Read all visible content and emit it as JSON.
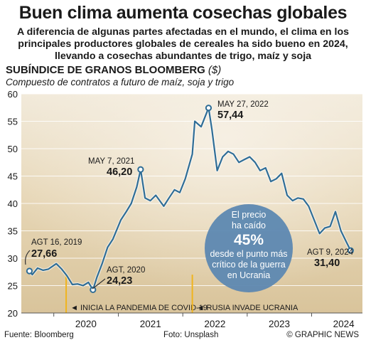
{
  "header": {
    "title": "Buen clima aumenta cosechas globales",
    "subtitle": "A diferencia de algunas partes afectadas en el mundo, el clima en los principales productores globales de cereales  ha sido bueno en 2024, llevando a cosechas abundantes de trigo, maíz y soja"
  },
  "chart_header": {
    "title": "SUBÍNDICE DE GRANOS BLOOMBERG",
    "unit": "($)",
    "subtitle": "Compuesto de contratos a futuro de maíz, soja y trigo"
  },
  "chart_data": {
    "type": "line",
    "title": "SUBÍNDICE DE GRANOS BLOOMBERG",
    "ylim": [
      20,
      60
    ],
    "yticks": [
      20,
      25,
      30,
      35,
      40,
      45,
      50,
      55,
      60
    ],
    "xlim": [
      "2019-07-01",
      "2024-10-15"
    ],
    "xticks": [
      {
        "label": "2020",
        "date": "2020-01-01"
      },
      {
        "label": "2021",
        "date": "2021-01-01"
      },
      {
        "label": "2022",
        "date": "2022-01-01"
      },
      {
        "label": "2023",
        "date": "2023-01-01"
      },
      {
        "label": "2024",
        "date": "2024-01-01"
      }
    ],
    "grid": true,
    "series": [
      {
        "color": "#2f6d96",
        "points": [
          [
            "2019-08-16",
            27.66
          ],
          [
            "2019-09-01",
            27.0
          ],
          [
            "2019-10-01",
            28.2
          ],
          [
            "2019-11-01",
            27.8
          ],
          [
            "2019-12-01",
            28.0
          ],
          [
            "2020-01-15",
            29.0
          ],
          [
            "2020-02-15",
            28.0
          ],
          [
            "2020-03-15",
            26.8
          ],
          [
            "2020-04-15",
            25.2
          ],
          [
            "2020-05-15",
            25.3
          ],
          [
            "2020-06-15",
            25.0
          ],
          [
            "2020-07-15",
            25.6
          ],
          [
            "2020-08-10",
            24.23
          ],
          [
            "2020-09-01",
            26.5
          ],
          [
            "2020-10-01",
            29.0
          ],
          [
            "2020-11-01",
            32.0
          ],
          [
            "2020-12-01",
            33.5
          ],
          [
            "2021-01-15",
            37.0
          ],
          [
            "2021-02-15",
            38.5
          ],
          [
            "2021-03-15",
            40.0
          ],
          [
            "2021-04-15",
            43.0
          ],
          [
            "2021-05-07",
            46.2
          ],
          [
            "2021-06-01",
            41.0
          ],
          [
            "2021-07-01",
            40.5
          ],
          [
            "2021-08-01",
            41.5
          ],
          [
            "2021-09-15",
            39.5
          ],
          [
            "2021-10-15",
            41.0
          ],
          [
            "2021-11-15",
            42.5
          ],
          [
            "2021-12-15",
            42.0
          ],
          [
            "2022-01-15",
            44.5
          ],
          [
            "2022-02-24",
            49.0
          ],
          [
            "2022-03-10",
            55.0
          ],
          [
            "2022-04-15",
            54.0
          ],
          [
            "2022-05-27",
            57.44
          ],
          [
            "2022-06-15",
            53.5
          ],
          [
            "2022-07-15",
            46.0
          ],
          [
            "2022-08-15",
            48.5
          ],
          [
            "2022-09-15",
            49.5
          ],
          [
            "2022-10-15",
            49.0
          ],
          [
            "2022-11-15",
            47.5
          ],
          [
            "2022-12-15",
            48.0
          ],
          [
            "2023-01-15",
            48.5
          ],
          [
            "2023-02-15",
            47.5
          ],
          [
            "2023-03-15",
            46.0
          ],
          [
            "2023-04-15",
            46.5
          ],
          [
            "2023-05-15",
            44.0
          ],
          [
            "2023-06-15",
            44.5
          ],
          [
            "2023-07-15",
            45.5
          ],
          [
            "2023-08-15",
            41.5
          ],
          [
            "2023-09-15",
            40.5
          ],
          [
            "2023-10-15",
            41.0
          ],
          [
            "2023-11-15",
            40.8
          ],
          [
            "2023-12-15",
            39.5
          ],
          [
            "2024-01-15",
            37.0
          ],
          [
            "2024-02-15",
            34.5
          ],
          [
            "2024-03-15",
            35.5
          ],
          [
            "2024-04-15",
            35.8
          ],
          [
            "2024-05-15",
            38.5
          ],
          [
            "2024-06-15",
            35.0
          ],
          [
            "2024-07-15",
            33.0
          ],
          [
            "2024-08-09",
            31.4
          ]
        ]
      }
    ],
    "annotations": {
      "low_2019": {
        "date": "AGT 16, 2019",
        "value": "27,66"
      },
      "low_2020": {
        "date": "AGT, 2020",
        "value": "24,23"
      },
      "high_2021": {
        "date": "MAY 7, 2021",
        "value": "46,20"
      },
      "high_2022": {
        "date": "MAY 27, 2022",
        "value": "57,44"
      },
      "last_2024": {
        "date": "AGT 9, 2024",
        "value": "31,40"
      }
    },
    "events": [
      {
        "date": "2020-03-11",
        "label": "◄ INICIA LA PANDEMIA DE COVID-19"
      },
      {
        "date": "2022-02-24",
        "label": "◄ RUSIA INVADE UCRANIA"
      }
    ],
    "callout": {
      "lines": [
        "El precio",
        "ha caído"
      ],
      "big": "45%",
      "lines2": [
        "desde el punto más",
        "crítico de la guerra",
        "en Ucrania"
      ],
      "color": "#5d88b1"
    },
    "colors": {
      "line": "#2f6d96",
      "event_line": "#f0b41e",
      "plot_bg": "#e8dcc2"
    }
  },
  "footer": {
    "source": "Fuente: Bloomberg",
    "photo": "Foto: Unsplash",
    "credit": "© GRAPHIC NEWS"
  }
}
